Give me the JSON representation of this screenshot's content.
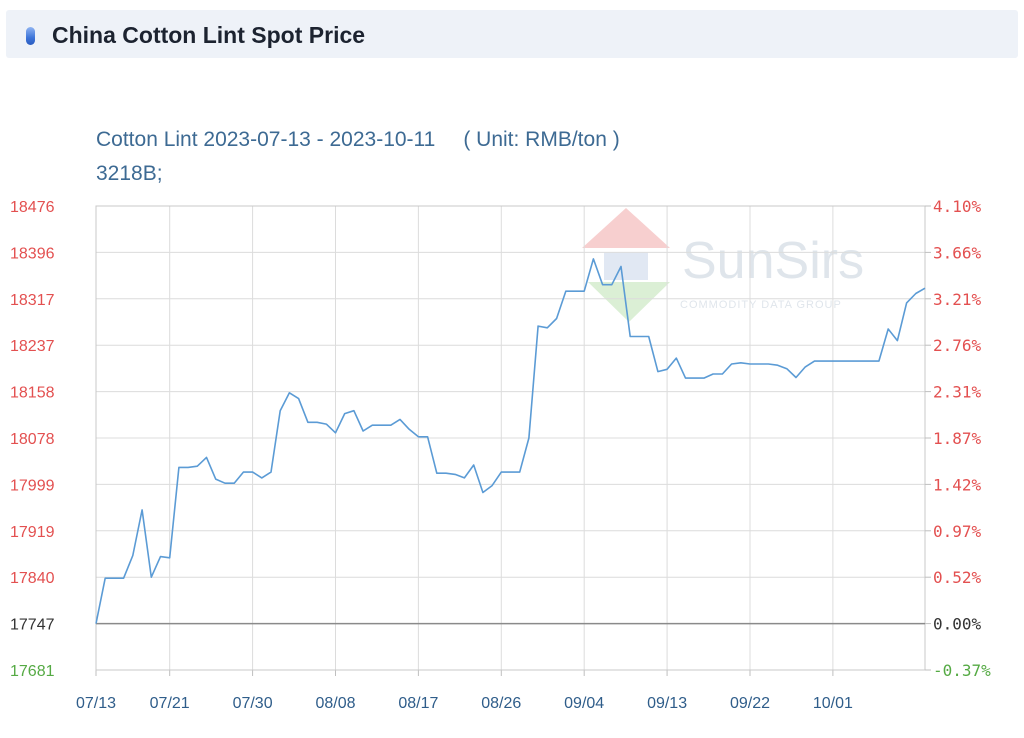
{
  "header": {
    "title": "China Cotton Lint Spot Price"
  },
  "watermark": {
    "brand": "SunSirs",
    "tagline": "COMMODITY DATA GROUP"
  },
  "colors": {
    "line": "#5b9bd5",
    "left_axis": "#e35050",
    "baseline_label": "#333333",
    "negative_label": "#55aa44",
    "right_axis": "#e35050",
    "title": "#3d6a93"
  },
  "chart_data": {
    "type": "line",
    "title": "Cotton Lint 2023-07-13 - 2023-10-11",
    "unit": "( Unit: RMB/ton )",
    "subtitle": "3218B;",
    "x_start": "2023-07-13",
    "x_end": "2023-10-11",
    "x_ticks": [
      "07/13",
      "07/21",
      "07/30",
      "08/08",
      "08/17",
      "08/26",
      "09/04",
      "09/13",
      "09/22",
      "10/01"
    ],
    "y_ticks": [
      17681,
      17747,
      17840,
      17919,
      17999,
      18078,
      18158,
      18237,
      18317,
      18396,
      18476
    ],
    "y_right_ticks": [
      "-0.37%",
      "0.00%",
      "0.52%",
      "0.97%",
      "1.42%",
      "1.87%",
      "2.31%",
      "2.76%",
      "3.21%",
      "3.66%",
      "4.10%"
    ],
    "ylim": [
      17681,
      18476
    ],
    "baseline": 17747,
    "grid": true,
    "series": [
      {
        "x": [
          "2023-07-13",
          "2023-07-14",
          "2023-07-15",
          "2023-07-16",
          "2023-07-17",
          "2023-07-18",
          "2023-07-19",
          "2023-07-20",
          "2023-07-21",
          "2023-07-22",
          "2023-07-23",
          "2023-07-24",
          "2023-07-25",
          "2023-07-26",
          "2023-07-27",
          "2023-07-28",
          "2023-07-29",
          "2023-07-30",
          "2023-07-31",
          "2023-08-01",
          "2023-08-02",
          "2023-08-03",
          "2023-08-04",
          "2023-08-05",
          "2023-08-06",
          "2023-08-07",
          "2023-08-08",
          "2023-08-09",
          "2023-08-10",
          "2023-08-11",
          "2023-08-12",
          "2023-08-13",
          "2023-08-14",
          "2023-08-15",
          "2023-08-16",
          "2023-08-17",
          "2023-08-18",
          "2023-08-19",
          "2023-08-20",
          "2023-08-21",
          "2023-08-22",
          "2023-08-23",
          "2023-08-24",
          "2023-08-25",
          "2023-08-26",
          "2023-08-27",
          "2023-08-28",
          "2023-08-29",
          "2023-08-30",
          "2023-08-31",
          "2023-09-01",
          "2023-09-02",
          "2023-09-03",
          "2023-09-04",
          "2023-09-05",
          "2023-09-06",
          "2023-09-07",
          "2023-09-08",
          "2023-09-09",
          "2023-09-10",
          "2023-09-11",
          "2023-09-12",
          "2023-09-13",
          "2023-09-14",
          "2023-09-15",
          "2023-09-16",
          "2023-09-17",
          "2023-09-18",
          "2023-09-19",
          "2023-09-20",
          "2023-09-21",
          "2023-09-22",
          "2023-09-23",
          "2023-09-24",
          "2023-09-25",
          "2023-09-26",
          "2023-09-27",
          "2023-09-28",
          "2023-09-29",
          "2023-09-30",
          "2023-10-01",
          "2023-10-02",
          "2023-10-03",
          "2023-10-04",
          "2023-10-05",
          "2023-10-06",
          "2023-10-07",
          "2023-10-08",
          "2023-10-09",
          "2023-10-10",
          "2023-10-11"
        ],
        "values": [
          17747,
          17838,
          17838,
          17838,
          17877,
          17955,
          17840,
          17875,
          17873,
          18028,
          18028,
          18030,
          18045,
          18008,
          18001,
          18001,
          18020,
          18020,
          18010,
          18020,
          18125,
          18156,
          18146,
          18105,
          18105,
          18102,
          18087,
          18120,
          18125,
          18090,
          18100,
          18100,
          18100,
          18110,
          18093,
          18080,
          18080,
          18018,
          18018,
          18016,
          18010,
          18032,
          17985,
          17997,
          18020,
          18020,
          18020,
          18078,
          18270,
          18267,
          18283,
          18330,
          18330,
          18330,
          18385,
          18341,
          18341,
          18372,
          18252,
          18252,
          18252,
          18192,
          18196,
          18215,
          18181,
          18181,
          18181,
          18188,
          18188,
          18205,
          18207,
          18205,
          18205,
          18205,
          18203,
          18197,
          18182,
          18200,
          18210,
          18210,
          18210,
          18210,
          18210,
          18210,
          18210,
          18210,
          18265,
          18245,
          18310,
          18326,
          18335
        ]
      }
    ]
  }
}
